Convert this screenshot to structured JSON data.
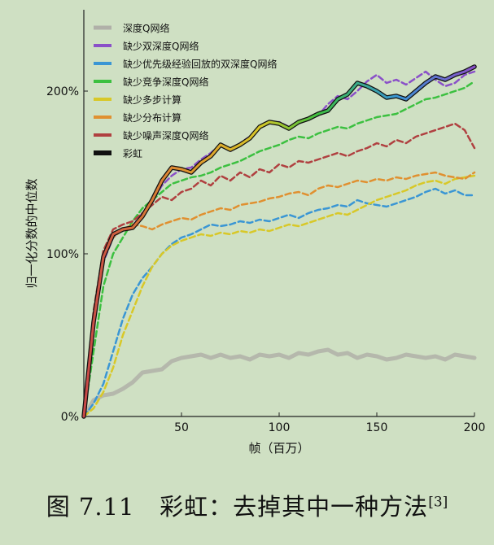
{
  "caption": {
    "label": "图 7.11",
    "text": "彩虹：去掉其中一种方法",
    "ref": "[3]"
  },
  "chart_data": {
    "type": "line",
    "title": "",
    "xlabel": "帧（百万）",
    "ylabel": "归一化分数的中位数",
    "xlim": [
      0,
      200
    ],
    "ylim": [
      0,
      250
    ],
    "xticks": [
      50,
      100,
      150,
      200
    ],
    "yticks": [
      {
        "value": 0,
        "label": "0%"
      },
      {
        "value": 100,
        "label": "100%"
      },
      {
        "value": 200,
        "label": "200%"
      }
    ],
    "grid": false,
    "legend_position": "top-left",
    "x": [
      0,
      5,
      10,
      15,
      20,
      25,
      30,
      35,
      40,
      45,
      50,
      55,
      60,
      65,
      70,
      75,
      80,
      85,
      90,
      95,
      100,
      105,
      110,
      115,
      120,
      125,
      130,
      135,
      140,
      145,
      150,
      155,
      160,
      165,
      170,
      175,
      180,
      185,
      190,
      195,
      200
    ],
    "series": [
      {
        "name": "深度Q网络",
        "color": "#b0b0a8",
        "style": "solid-thick",
        "values": [
          0,
          10,
          13,
          14,
          17,
          21,
          27,
          28,
          29,
          34,
          36,
          37,
          38,
          36,
          38,
          36,
          37,
          35,
          38,
          37,
          38,
          36,
          39,
          38,
          40,
          41,
          38,
          39,
          36,
          38,
          37,
          35,
          36,
          38,
          37,
          36,
          37,
          35,
          38,
          37,
          36
        ]
      },
      {
        "name": "缺少双深度Q网络",
        "color": "#8a50c8",
        "style": "dashed",
        "values": [
          0,
          55,
          95,
          110,
          115,
          117,
          125,
          132,
          142,
          148,
          152,
          153,
          158,
          162,
          167,
          163,
          168,
          172,
          178,
          180,
          181,
          178,
          180,
          183,
          185,
          192,
          197,
          195,
          200,
          206,
          210,
          205,
          207,
          204,
          208,
          212,
          207,
          203,
          205,
          210,
          212
        ]
      },
      {
        "name": "缺少优先级经验回放的双深度Q网络",
        "color": "#3a96d4",
        "style": "dashed",
        "values": [
          0,
          8,
          20,
          40,
          60,
          75,
          85,
          92,
          100,
          106,
          110,
          112,
          115,
          118,
          117,
          118,
          120,
          119,
          121,
          120,
          122,
          124,
          122,
          125,
          127,
          128,
          130,
          129,
          133,
          131,
          130,
          129,
          131,
          133,
          135,
          138,
          140,
          137,
          139,
          136,
          136
        ]
      },
      {
        "name": "缺少竞争深度Q网络",
        "color": "#3cc040",
        "style": "dashed",
        "values": [
          0,
          40,
          80,
          100,
          110,
          120,
          128,
          133,
          138,
          143,
          145,
          147,
          148,
          150,
          153,
          155,
          157,
          160,
          163,
          165,
          167,
          170,
          172,
          171,
          174,
          176,
          178,
          177,
          180,
          182,
          184,
          185,
          186,
          189,
          192,
          195,
          196,
          198,
          200,
          202,
          206
        ]
      },
      {
        "name": "缺少多步计算",
        "color": "#d8c828",
        "style": "dashed",
        "values": [
          0,
          5,
          15,
          30,
          50,
          65,
          80,
          92,
          100,
          105,
          108,
          110,
          112,
          111,
          113,
          112,
          114,
          113,
          115,
          114,
          116,
          118,
          117,
          119,
          121,
          123,
          125,
          124,
          127,
          130,
          133,
          135,
          137,
          139,
          142,
          144,
          145,
          143,
          146,
          147,
          148
        ]
      },
      {
        "name": "缺少分布计算",
        "color": "#e09030",
        "style": "dashed",
        "values": [
          0,
          60,
          100,
          110,
          115,
          118,
          117,
          115,
          118,
          120,
          122,
          121,
          124,
          126,
          128,
          127,
          130,
          131,
          132,
          134,
          135,
          137,
          138,
          136,
          140,
          142,
          141,
          143,
          145,
          144,
          146,
          145,
          147,
          146,
          148,
          149,
          150,
          148,
          147,
          146,
          150
        ]
      },
      {
        "name": "缺少噪声深度Q网络",
        "color": "#b04040",
        "style": "dashed",
        "values": [
          0,
          65,
          102,
          115,
          118,
          120,
          125,
          130,
          135,
          133,
          138,
          140,
          145,
          142,
          148,
          145,
          150,
          147,
          152,
          150,
          155,
          153,
          157,
          156,
          158,
          160,
          162,
          160,
          163,
          165,
          168,
          166,
          170,
          168,
          172,
          174,
          176,
          178,
          180,
          176,
          165
        ]
      },
      {
        "name": "彩虹",
        "color": "rainbow",
        "style": "solid-rainbow",
        "values": [
          0,
          58,
          98,
          112,
          115,
          116,
          123,
          133,
          145,
          153,
          152,
          150,
          156,
          160,
          167,
          164,
          167,
          171,
          178,
          181,
          180,
          177,
          181,
          183,
          186,
          188,
          195,
          198,
          205,
          203,
          200,
          196,
          197,
          195,
          200,
          205,
          209,
          207,
          210,
          212,
          215
        ]
      }
    ]
  }
}
